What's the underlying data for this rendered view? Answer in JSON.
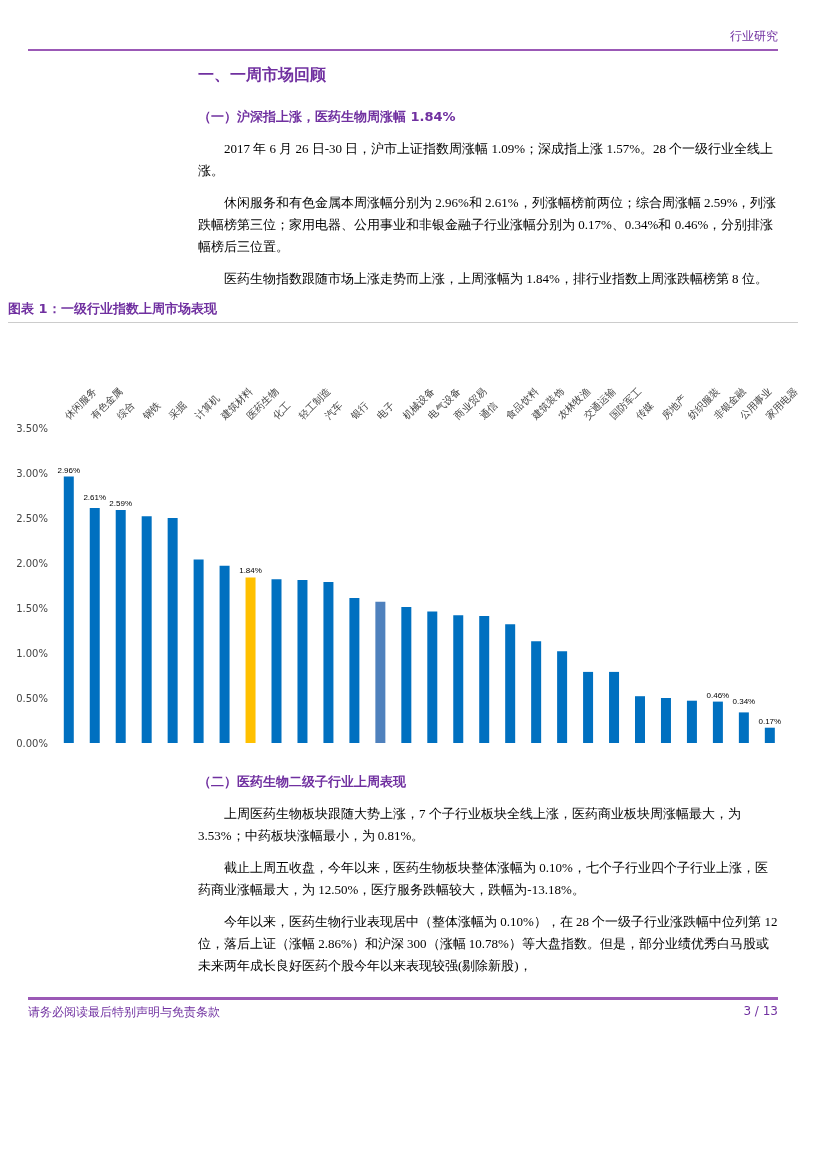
{
  "chart_data": {
    "type": "bar",
    "title": "图表 1：一级行业指数上周市场表现",
    "categories": [
      "休闲服务",
      "有色金属",
      "综合",
      "钢铁",
      "采掘",
      "计算机",
      "建筑材料",
      "医药生物",
      "化工",
      "轻工制造",
      "汽车",
      "银行",
      "电子",
      "机械设备",
      "电气设备",
      "商业贸易",
      "通信",
      "食品饮料",
      "建筑装饰",
      "农林牧渔",
      "交通运输",
      "国防军工",
      "传媒",
      "房地产",
      "纺织服装",
      "非银金融",
      "公用事业",
      "家用电器"
    ],
    "values": [
      2.96,
      2.61,
      2.59,
      2.52,
      2.5,
      2.04,
      1.97,
      1.84,
      1.82,
      1.81,
      1.79,
      1.61,
      1.57,
      1.51,
      1.46,
      1.42,
      1.41,
      1.32,
      1.13,
      1.02,
      0.79,
      0.79,
      0.52,
      0.5,
      0.47,
      0.46,
      0.34,
      0.17
    ],
    "colors": [
      "#0070c0",
      "#0070c0",
      "#0070c0",
      "#0070c0",
      "#0070c0",
      "#0070c0",
      "#0070c0",
      "#ffc000",
      "#0070c0",
      "#0070c0",
      "#0070c0",
      "#0070c0",
      "#4f81bd",
      "#0070c0",
      "#0070c0",
      "#0070c0",
      "#0070c0",
      "#0070c0",
      "#0070c0",
      "#0070c0",
      "#0070c0",
      "#0070c0",
      "#0070c0",
      "#0070c0",
      "#0070c0",
      "#0070c0",
      "#0070c0",
      "#0070c0"
    ],
    "value_labels": [
      "2.96%",
      "2.61%",
      "2.59%",
      null,
      null,
      null,
      null,
      "1.84%",
      null,
      null,
      null,
      null,
      null,
      null,
      null,
      null,
      null,
      null,
      null,
      null,
      null,
      null,
      null,
      null,
      null,
      "0.46%",
      "0.34%",
      "0.17%"
    ],
    "ylim": [
      0,
      3.5
    ],
    "yticks": [
      {
        "value": 0,
        "label": "0.00%"
      },
      {
        "value": 0.5,
        "label": "0.50%"
      },
      {
        "value": 1,
        "label": "1.00%"
      },
      {
        "value": 1.5,
        "label": "1.50%"
      },
      {
        "value": 2,
        "label": "2.00%"
      },
      {
        "value": 2.5,
        "label": "2.50%"
      },
      {
        "value": 3,
        "label": "3.00%"
      },
      {
        "value": 3.5,
        "label": "3.50%"
      }
    ],
    "annotations": [
      "行业研究",
      "一、一周市场回顾",
      "（一）沪深指上涨，医药生物周涨幅 1.84%",
      "2017 年 6 月 26 日-30 日，沪市上证指数周涨幅 1.09%；深成指上涨 1.57%。28 个一级行业全线上涨。",
      "休闲服务和有色金属本周涨幅分别为 2.96%和 2.61%，列涨幅榜前两位；综合周涨幅 2.59%，列涨跌幅榜第三位；家用电器、公用事业和非银金融子行业涨幅分别为 0.17%、0.34%和 0.46%，分别排涨幅榜后三位置。",
      "医药生物指数跟随市场上涨走势而上涨，上周涨幅为 1.84%，排行业指数上周涨跌幅榜第 8 位。",
      "（二）医药生物二级子行业上周表现",
      "上周医药生物板块跟随大势上涨，7 个子行业板块全线上涨，医药商业板块周涨幅最大，为 3.53%；中药板块涨幅最小，为 0.81%。",
      "截止上周五收盘，今年以来，医药生物板块整体涨幅为 0.10%，七个子行业四个子行业上涨，医药商业涨幅最大，为 12.50%，医疗服务跌幅较大，跌幅为-13.18%。",
      "今年以来，医药生物行业表现居中（整体涨幅为 0.10%），在 28 个一级子行业涨跌幅中位列第 12 位，落后上证（涨幅 2.86%）和沪深 300（涨幅 10.78%）等大盘指数。但是，部分业绩优秀白马股或未来两年成长良好医药个股今年以来表现较强(剔除新股)，",
      "请务必阅读最后特别声明与免责条款",
      "3 / 13"
    ]
  }
}
